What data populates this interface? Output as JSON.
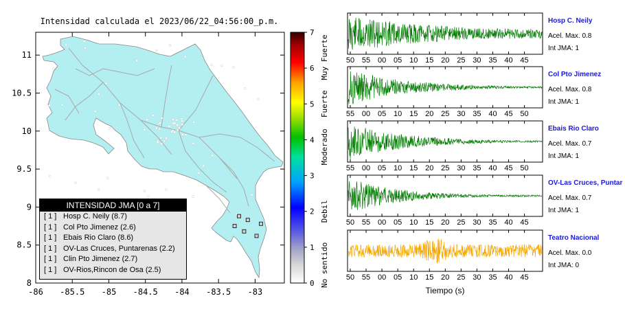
{
  "map": {
    "title": "Intensidad calculada el 2023/06/22_04:56:00_p.m.",
    "x_ticks": [
      "-86",
      "-85.5",
      "-85",
      "-84.5",
      "-84",
      "-83.5",
      "-83"
    ],
    "y_ticks": [
      "11",
      "10.5",
      "10",
      "9.5",
      "9",
      "8.5",
      "8"
    ],
    "lon_range": [
      -86,
      -82.6
    ],
    "lat_range": [
      8,
      11.3
    ],
    "land_color": "#b3eef0",
    "stations": [
      {
        "lon": -82.98,
        "lat": 8.62
      },
      {
        "lon": -83.15,
        "lat": 8.68
      },
      {
        "lon": -83.28,
        "lat": 8.75
      },
      {
        "lon": -82.92,
        "lat": 8.78
      },
      {
        "lon": -83.1,
        "lat": 8.83
      },
      {
        "lon": -83.22,
        "lat": 8.88
      }
    ]
  },
  "colorbar": {
    "ticks": [
      "0",
      "1",
      "2",
      "3",
      "4",
      "5",
      "6",
      "7"
    ],
    "labels": [
      "No sentido",
      "Debil",
      "Moderado",
      "Fuerte",
      "Muy Fuerte"
    ]
  },
  "legend": {
    "title": "INTENSIDAD JMA [0 a 7]",
    "rows": [
      {
        "level": "[ 1 ]",
        "name": "Hosp C. Neily (8.7)"
      },
      {
        "level": "[ 1 ]",
        "name": "Col Pto Jimenez (2.6)"
      },
      {
        "level": "[ 1 ]",
        "name": "Ebais Rio Claro (8.6)"
      },
      {
        "level": "[ 1 ]",
        "name": "OV-Las Cruces, Puntarenas (2.2)"
      },
      {
        "level": "[ 1 ]",
        "name": "Clin Pto Jimenez (2.7)"
      },
      {
        "level": "[ 1 ]",
        "name": "OV-Rios,Rincon de Osa (2.5)"
      }
    ]
  },
  "chart_data": {
    "type": "line",
    "xlabel": "Tiempo (s)",
    "series": [
      {
        "name": "Hosp C. Neily",
        "acel_label": "Acel. Max. 0.8",
        "jma_label": "Int JMA: 1",
        "x_ticks": [
          "50",
          "55",
          "00",
          "05",
          "10",
          "15",
          "20",
          "25",
          "30",
          "35",
          "40",
          "45"
        ],
        "color": "#007a00",
        "amplitude": 0.8
      },
      {
        "name": "Col Pto Jimenez",
        "acel_label": "Acel. Max. 0.8",
        "jma_label": "Int JMA: 1",
        "x_ticks": [
          "55",
          "00",
          "05",
          "10",
          "15",
          "20",
          "25",
          "30",
          "35",
          "40",
          "45",
          "50"
        ],
        "color": "#007a00",
        "amplitude": 0.8
      },
      {
        "name": "Ebais Rio Claro",
        "acel_label": "Acel. Max. 0.7",
        "jma_label": "Int JMA: 1",
        "x_ticks": [
          "55",
          "00",
          "05",
          "10",
          "15",
          "20",
          "25",
          "30",
          "35",
          "40",
          "45",
          "50"
        ],
        "color": "#007a00",
        "amplitude": 0.7
      },
      {
        "name": "OV-Las Cruces, Puntar",
        "acel_label": "Acel. Max. 0.7",
        "jma_label": "Int JMA: 1",
        "x_ticks": [
          "50",
          "55",
          "00",
          "05",
          "10",
          "15",
          "20",
          "25",
          "30",
          "35",
          "40",
          "45"
        ],
        "color": "#007a00",
        "amplitude": 0.7
      },
      {
        "name": "Teatro Nacional",
        "acel_label": "Acel. Max. 0.0",
        "jma_label": "Int JMA: 0",
        "x_ticks": [
          "50",
          "55",
          "00",
          "05",
          "10",
          "15",
          "20",
          "25",
          "30",
          "35",
          "40",
          "45"
        ],
        "color": "#f5a800",
        "amplitude": 0.0
      }
    ]
  }
}
